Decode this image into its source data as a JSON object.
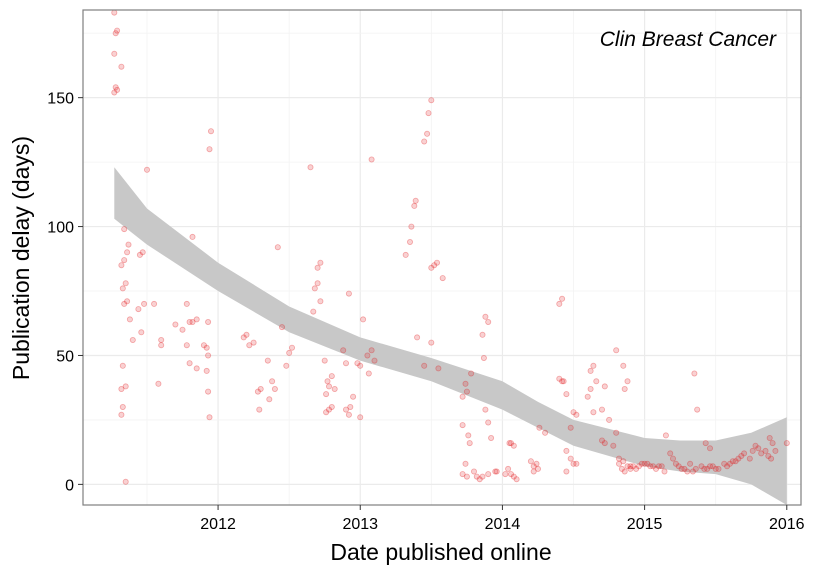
{
  "chart_data": {
    "type": "scatter",
    "xlabel": "Date published online",
    "ylabel": "Publication delay (days)",
    "annotation": "Clin Breast Cancer",
    "xlim": [
      2011.05,
      2016.1
    ],
    "ylim": [
      -8,
      184
    ],
    "x_ticks": [
      2012,
      2013,
      2014,
      2015,
      2016
    ],
    "x_tick_labels": [
      "2012",
      "2013",
      "2014",
      "2015",
      "2016"
    ],
    "y_ticks": [
      0,
      50,
      100,
      150
    ],
    "y_tick_labels": [
      "0",
      "50",
      "100",
      "150"
    ],
    "grid": true,
    "legend": "none",
    "point_color": "#e31a1c",
    "band_color": "#c8c8c8",
    "points": [
      [
        2011.27,
        183
      ],
      [
        2011.28,
        175
      ],
      [
        2011.29,
        176
      ],
      [
        2011.27,
        167
      ],
      [
        2011.28,
        154
      ],
      [
        2011.29,
        153
      ],
      [
        2011.27,
        152
      ],
      [
        2011.32,
        162
      ],
      [
        2011.34,
        99
      ],
      [
        2011.32,
        85
      ],
      [
        2011.34,
        87
      ],
      [
        2011.36,
        90
      ],
      [
        2011.37,
        93
      ],
      [
        2011.35,
        78
      ],
      [
        2011.33,
        76
      ],
      [
        2011.34,
        70
      ],
      [
        2011.36,
        71
      ],
      [
        2011.38,
        64
      ],
      [
        2011.4,
        56
      ],
      [
        2011.33,
        46
      ],
      [
        2011.35,
        38
      ],
      [
        2011.32,
        37
      ],
      [
        2011.33,
        30
      ],
      [
        2011.32,
        27
      ],
      [
        2011.35,
        1
      ],
      [
        2011.45,
        89
      ],
      [
        2011.47,
        90
      ],
      [
        2011.5,
        122
      ],
      [
        2011.48,
        70
      ],
      [
        2011.44,
        68
      ],
      [
        2011.46,
        59
      ],
      [
        2011.55,
        70
      ],
      [
        2011.6,
        56
      ],
      [
        2011.6,
        54
      ],
      [
        2011.58,
        39
      ],
      [
        2011.7,
        62
      ],
      [
        2011.75,
        60
      ],
      [
        2011.78,
        70
      ],
      [
        2011.8,
        63
      ],
      [
        2011.82,
        63
      ],
      [
        2011.82,
        96
      ],
      [
        2011.85,
        64
      ],
      [
        2011.78,
        54
      ],
      [
        2011.8,
        47
      ],
      [
        2011.85,
        45
      ],
      [
        2011.9,
        54
      ],
      [
        2011.92,
        53
      ],
      [
        2011.93,
        50
      ],
      [
        2011.93,
        63
      ],
      [
        2011.92,
        44
      ],
      [
        2011.93,
        36
      ],
      [
        2011.94,
        130
      ],
      [
        2011.95,
        137
      ],
      [
        2011.94,
        26
      ],
      [
        2012.18,
        57
      ],
      [
        2012.2,
        58
      ],
      [
        2012.22,
        54
      ],
      [
        2012.25,
        55
      ],
      [
        2012.28,
        36
      ],
      [
        2012.3,
        37
      ],
      [
        2012.29,
        29
      ],
      [
        2012.35,
        48
      ],
      [
        2012.38,
        40
      ],
      [
        2012.4,
        37
      ],
      [
        2012.36,
        33
      ],
      [
        2012.42,
        92
      ],
      [
        2012.45,
        61
      ],
      [
        2012.5,
        51
      ],
      [
        2012.48,
        46
      ],
      [
        2012.52,
        53
      ],
      [
        2012.65,
        123
      ],
      [
        2012.7,
        84
      ],
      [
        2012.72,
        86
      ],
      [
        2012.7,
        78
      ],
      [
        2012.68,
        76
      ],
      [
        2012.72,
        71
      ],
      [
        2012.67,
        67
      ],
      [
        2012.75,
        48
      ],
      [
        2012.77,
        40
      ],
      [
        2012.78,
        38
      ],
      [
        2012.76,
        35
      ],
      [
        2012.76,
        28
      ],
      [
        2012.78,
        29
      ],
      [
        2012.8,
        30
      ],
      [
        2012.82,
        37
      ],
      [
        2012.8,
        42
      ],
      [
        2012.88,
        52
      ],
      [
        2012.92,
        74
      ],
      [
        2012.9,
        47
      ],
      [
        2012.9,
        29
      ],
      [
        2012.92,
        27
      ],
      [
        2012.93,
        30
      ],
      [
        2012.95,
        34
      ],
      [
        2013.0,
        46
      ],
      [
        2012.98,
        47
      ],
      [
        2013.02,
        64
      ],
      [
        2013.0,
        26
      ],
      [
        2013.05,
        50
      ],
      [
        2013.08,
        126
      ],
      [
        2013.08,
        52
      ],
      [
        2013.06,
        43
      ],
      [
        2013.1,
        48
      ],
      [
        2013.32,
        89
      ],
      [
        2013.35,
        94
      ],
      [
        2013.36,
        100
      ],
      [
        2013.38,
        108
      ],
      [
        2013.39,
        110
      ],
      [
        2013.45,
        133
      ],
      [
        2013.47,
        136
      ],
      [
        2013.48,
        144
      ],
      [
        2013.5,
        149
      ],
      [
        2013.52,
        85
      ],
      [
        2013.54,
        86
      ],
      [
        2013.5,
        84
      ],
      [
        2013.58,
        80
      ],
      [
        2013.4,
        57
      ],
      [
        2013.45,
        46
      ],
      [
        2013.5,
        55
      ],
      [
        2013.55,
        45
      ],
      [
        2013.72,
        34
      ],
      [
        2013.74,
        39
      ],
      [
        2013.78,
        43
      ],
      [
        2013.75,
        36
      ],
      [
        2013.72,
        23
      ],
      [
        2013.76,
        19
      ],
      [
        2013.77,
        16
      ],
      [
        2013.74,
        8
      ],
      [
        2013.72,
        4
      ],
      [
        2013.75,
        3
      ],
      [
        2013.8,
        5
      ],
      [
        2013.82,
        3
      ],
      [
        2013.84,
        2
      ],
      [
        2013.86,
        3
      ],
      [
        2013.9,
        4
      ],
      [
        2013.88,
        65
      ],
      [
        2013.9,
        63
      ],
      [
        2013.86,
        58
      ],
      [
        2013.87,
        49
      ],
      [
        2013.88,
        29
      ],
      [
        2013.9,
        24
      ],
      [
        2013.92,
        18
      ],
      [
        2013.95,
        5
      ],
      [
        2013.96,
        5
      ],
      [
        2014.05,
        16
      ],
      [
        2014.06,
        16
      ],
      [
        2014.08,
        15
      ],
      [
        2014.04,
        6
      ],
      [
        2014.02,
        4
      ],
      [
        2014.06,
        4
      ],
      [
        2014.08,
        3
      ],
      [
        2014.1,
        2
      ],
      [
        2014.2,
        9
      ],
      [
        2014.22,
        7
      ],
      [
        2014.24,
        8
      ],
      [
        2014.25,
        6
      ],
      [
        2014.22,
        5
      ],
      [
        2014.26,
        22
      ],
      [
        2014.3,
        20
      ],
      [
        2014.4,
        70
      ],
      [
        2014.42,
        72
      ],
      [
        2014.4,
        41
      ],
      [
        2014.42,
        40
      ],
      [
        2014.43,
        40
      ],
      [
        2014.45,
        35
      ],
      [
        2014.5,
        28
      ],
      [
        2014.52,
        27
      ],
      [
        2014.48,
        22
      ],
      [
        2014.45,
        13
      ],
      [
        2014.48,
        10
      ],
      [
        2014.5,
        8
      ],
      [
        2014.52,
        8
      ],
      [
        2014.45,
        5
      ],
      [
        2014.62,
        44
      ],
      [
        2014.64,
        46
      ],
      [
        2014.66,
        40
      ],
      [
        2014.62,
        37
      ],
      [
        2014.6,
        34
      ],
      [
        2014.64,
        28
      ],
      [
        2014.7,
        29
      ],
      [
        2014.72,
        38
      ],
      [
        2014.75,
        25
      ],
      [
        2014.7,
        17
      ],
      [
        2014.72,
        16
      ],
      [
        2014.78,
        15
      ],
      [
        2014.8,
        20
      ],
      [
        2014.82,
        10
      ],
      [
        2014.85,
        9
      ],
      [
        2014.88,
        7
      ],
      [
        2014.9,
        6
      ],
      [
        2014.8,
        52
      ],
      [
        2014.85,
        46
      ],
      [
        2014.88,
        40
      ],
      [
        2014.86,
        37
      ],
      [
        2014.82,
        8
      ],
      [
        2014.84,
        6
      ],
      [
        2014.86,
        5
      ],
      [
        2014.9,
        7
      ],
      [
        2014.92,
        7
      ],
      [
        2014.94,
        6
      ],
      [
        2014.96,
        7
      ],
      [
        2014.98,
        8
      ],
      [
        2015.0,
        8
      ],
      [
        2015.02,
        8
      ],
      [
        2015.04,
        7
      ],
      [
        2015.06,
        7
      ],
      [
        2015.08,
        6
      ],
      [
        2015.1,
        7
      ],
      [
        2015.12,
        7
      ],
      [
        2015.14,
        5
      ],
      [
        2015.15,
        19
      ],
      [
        2015.18,
        12
      ],
      [
        2015.2,
        10
      ],
      [
        2015.22,
        8
      ],
      [
        2015.24,
        7
      ],
      [
        2015.26,
        6
      ],
      [
        2015.28,
        6
      ],
      [
        2015.3,
        5
      ],
      [
        2015.32,
        8
      ],
      [
        2015.34,
        5
      ],
      [
        2015.36,
        6
      ],
      [
        2015.4,
        7
      ],
      [
        2015.42,
        6
      ],
      [
        2015.44,
        6
      ],
      [
        2015.46,
        7
      ],
      [
        2015.48,
        7
      ],
      [
        2015.5,
        6
      ],
      [
        2015.52,
        6
      ],
      [
        2015.35,
        43
      ],
      [
        2015.37,
        29
      ],
      [
        2015.43,
        16
      ],
      [
        2015.46,
        14
      ],
      [
        2015.56,
        8
      ],
      [
        2015.58,
        7
      ],
      [
        2015.6,
        8
      ],
      [
        2015.62,
        9
      ],
      [
        2015.64,
        9
      ],
      [
        2015.66,
        10
      ],
      [
        2015.68,
        11
      ],
      [
        2015.7,
        12
      ],
      [
        2015.74,
        10
      ],
      [
        2015.76,
        13
      ],
      [
        2015.78,
        15
      ],
      [
        2015.8,
        14
      ],
      [
        2015.82,
        12
      ],
      [
        2015.85,
        13
      ],
      [
        2015.87,
        11
      ],
      [
        2015.89,
        10
      ],
      [
        2015.88,
        18
      ],
      [
        2015.9,
        16
      ],
      [
        2015.92,
        13
      ],
      [
        2016.0,
        16
      ]
    ],
    "smooth": {
      "x": [
        2011.27,
        2011.5,
        2012.0,
        2012.5,
        2013.0,
        2013.5,
        2014.0,
        2014.25,
        2014.5,
        2015.0,
        2015.25,
        2015.5,
        2015.75,
        2016.0
      ],
      "upper": [
        123,
        107,
        86,
        69,
        57,
        49,
        40,
        32,
        25,
        18,
        17,
        17,
        20,
        26
      ],
      "lower": [
        103,
        93,
        75,
        59,
        48,
        40,
        29,
        22,
        15,
        7,
        5,
        4,
        0,
        -8
      ]
    }
  }
}
